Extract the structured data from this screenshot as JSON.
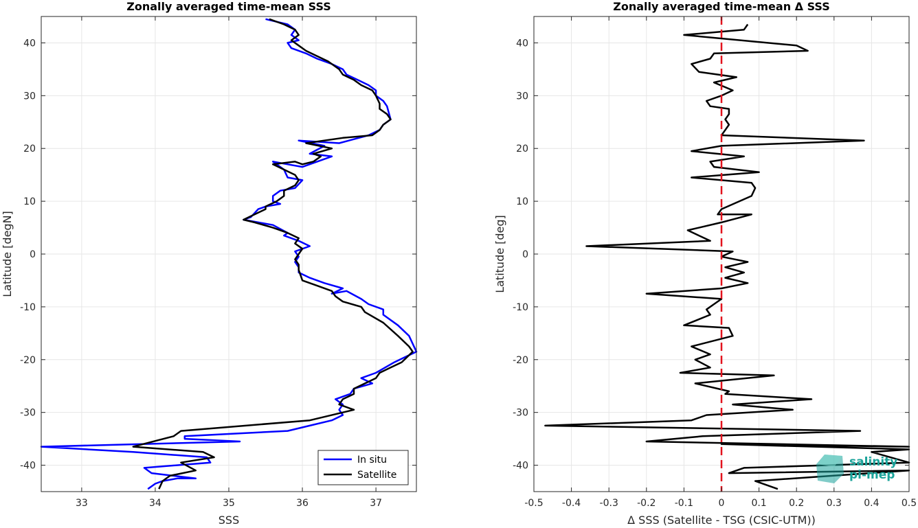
{
  "chart_data": [
    {
      "type": "line",
      "title": "Zonally averaged time-mean SSS",
      "xlabel": "SSS",
      "ylabel": "Latitude [degN]",
      "xlim": [
        32.45,
        37.55
      ],
      "ylim": [
        -45,
        45
      ],
      "xticks": [
        33,
        34,
        35,
        36,
        37
      ],
      "yticks": [
        -40,
        -30,
        -20,
        -10,
        0,
        10,
        20,
        30,
        40
      ],
      "grid": true,
      "legend_position": "bottom-right",
      "series": [
        {
          "name": "In situ",
          "color": "#0000ff",
          "x": [
            35.5,
            35.8,
            35.9,
            35.85,
            35.95,
            35.8,
            35.85,
            36.05,
            36.2,
            36.4,
            36.55,
            36.6,
            36.75,
            36.9,
            37.0,
            37.0,
            37.1,
            37.15,
            37.2,
            37.1,
            37.05,
            36.9,
            36.5,
            35.95,
            36.3,
            36.1,
            36.4,
            36.2,
            36.0,
            35.8,
            35.6,
            35.75,
            35.8,
            36.0,
            35.9,
            35.7,
            35.6,
            35.6,
            35.7,
            35.5,
            35.4,
            35.3,
            35.2,
            35.4,
            35.6,
            35.8,
            35.75,
            35.95,
            36.1,
            35.9,
            35.95,
            35.9,
            35.95,
            35.95,
            36.1,
            36.3,
            36.55,
            36.4,
            36.6,
            36.8,
            36.9,
            37.1,
            37.1,
            37.3,
            37.45,
            37.55,
            37.4,
            37.25,
            37.0,
            36.8,
            36.95,
            36.7,
            36.65,
            36.45,
            36.55,
            36.5,
            36.55,
            36.4,
            36.1,
            35.8,
            34.4,
            34.4,
            35.15,
            32.45,
            33.7,
            34.7,
            34.75,
            33.85,
            33.95,
            34.55,
            34.3,
            34.1,
            34.0,
            33.9
          ],
          "y": [
            44.5,
            43.5,
            42.5,
            41.5,
            40.5,
            40.0,
            39.0,
            38.0,
            37.0,
            36.0,
            35.0,
            34.0,
            33.0,
            32.0,
            31.0,
            30.0,
            29.0,
            28.0,
            25.5,
            24.5,
            23.5,
            22.5,
            21.0,
            21.5,
            20.5,
            19.0,
            18.5,
            17.5,
            16.5,
            17.0,
            17.5,
            16.0,
            14.5,
            14.0,
            12.5,
            12.0,
            11.0,
            10.0,
            9.5,
            9.0,
            8.5,
            7.0,
            6.5,
            6.0,
            5.5,
            4.0,
            3.5,
            2.5,
            1.5,
            0.5,
            -0.5,
            -1.5,
            -2.5,
            -3.5,
            -4.5,
            -5.5,
            -6.5,
            -7.5,
            -7.0,
            -8.5,
            -9.5,
            -10.5,
            -11.5,
            -13.5,
            -15.5,
            -18.5,
            -19.5,
            -20.5,
            -22.5,
            -23.5,
            -24.5,
            -25.5,
            -26.5,
            -27.5,
            -28.5,
            -29.5,
            -30.5,
            -31.5,
            -32.5,
            -33.5,
            -34.5,
            -35.0,
            -35.5,
            -36.5,
            -37.5,
            -38.5,
            -39.5,
            -40.5,
            -41.5,
            -42.5,
            -42.5,
            -43.0,
            -43.5,
            -44.5
          ]
        },
        {
          "name": "Satellite",
          "color": "#000000",
          "x": [
            35.55,
            35.75,
            35.9,
            35.95,
            35.85,
            35.95,
            36.05,
            36.2,
            36.35,
            36.5,
            36.55,
            36.7,
            36.8,
            36.95,
            37.0,
            37.05,
            37.05,
            37.15,
            37.2,
            37.1,
            37.05,
            36.95,
            36.55,
            36.05,
            36.4,
            36.15,
            36.25,
            36.15,
            36.0,
            35.9,
            35.6,
            35.75,
            35.9,
            35.95,
            35.9,
            35.75,
            35.75,
            35.7,
            35.65,
            35.5,
            35.5,
            35.35,
            35.2,
            35.35,
            35.6,
            35.8,
            35.95,
            35.9,
            36.0,
            35.95,
            35.9,
            35.95,
            35.95,
            36.0,
            36.2,
            36.4,
            36.45,
            36.55,
            36.8,
            36.85,
            37.1,
            37.3,
            37.45,
            37.5,
            37.35,
            37.2,
            37.05,
            37.0,
            36.7,
            36.7,
            36.55,
            36.5,
            36.7,
            36.1,
            34.35,
            34.25,
            33.7,
            34.65,
            34.8,
            34.35,
            34.55,
            34.2,
            34.1,
            34.05
          ],
          "y": [
            44.5,
            43.5,
            42.5,
            41.5,
            40.5,
            39.5,
            38.5,
            37.5,
            36.5,
            35.0,
            34.0,
            33.0,
            32.0,
            31.0,
            30.0,
            28.5,
            27.5,
            26.5,
            25.5,
            24.5,
            23.5,
            22.5,
            22.0,
            21.0,
            20.0,
            19.0,
            18.5,
            17.5,
            17.0,
            17.5,
            17.0,
            16.0,
            15.0,
            14.0,
            13.0,
            12.0,
            11.0,
            10.5,
            10.0,
            9.0,
            8.5,
            7.5,
            6.5,
            6.0,
            5.0,
            4.0,
            3.0,
            2.0,
            1.0,
            0.0,
            -1.0,
            -2.0,
            -3.0,
            -5.0,
            -6.0,
            -7.0,
            -8.0,
            -9.0,
            -10.0,
            -11.0,
            -13.0,
            -15.5,
            -17.5,
            -18.5,
            -20.5,
            -21.5,
            -22.5,
            -23.5,
            -25.5,
            -26.5,
            -27.5,
            -28.5,
            -29.5,
            -31.5,
            -33.5,
            -34.5,
            -36.5,
            -37.5,
            -38.5,
            -39.5,
            -41.0,
            -42.0,
            -43.0,
            -44.5
          ]
        }
      ]
    },
    {
      "type": "line",
      "title": "Zonally averaged time-mean Δ SSS",
      "xlabel": "Δ SSS (Satellite - TSG (CSIC-UTM))",
      "ylabel": "Latitude [deg]",
      "xlim": [
        -0.5,
        0.5
      ],
      "ylim": [
        -45,
        45
      ],
      "xticks": [
        -0.5,
        -0.4,
        -0.3,
        -0.2,
        -0.1,
        0,
        0.1,
        0.2,
        0.3,
        0.4,
        0.5
      ],
      "yticks": [
        -40,
        -30,
        -20,
        -10,
        0,
        10,
        20,
        30,
        40
      ],
      "grid": true,
      "reference_line": {
        "x": 0,
        "color": "#e3121d",
        "style": "dashed"
      },
      "series": [
        {
          "name": "",
          "color": "#000000",
          "x": [
            0.07,
            0.06,
            -0.1,
            0.2,
            0.23,
            -0.02,
            -0.03,
            -0.08,
            -0.06,
            0.04,
            -0.02,
            0.03,
            0.0,
            -0.04,
            -0.03,
            0.02,
            0.02,
            0.01,
            0.02,
            0.01,
            0.0,
            0.38,
            0.0,
            -0.08,
            0.06,
            -0.03,
            -0.02,
            0.1,
            -0.08,
            0.08,
            0.09,
            0.08,
            0.0,
            -0.01,
            0.08,
            0.0,
            -0.09,
            -0.06,
            -0.03,
            -0.36,
            0.03,
            0.0,
            0.07,
            0.01,
            0.06,
            0.01,
            0.07,
            0.0,
            -0.2,
            0.0,
            -0.02,
            -0.04,
            -0.03,
            -0.1,
            0.02,
            0.03,
            -0.08,
            -0.03,
            -0.07,
            -0.03,
            -0.11,
            0.14,
            -0.07,
            0.02,
            0.01,
            0.24,
            0.03,
            0.19,
            -0.04,
            -0.08,
            -0.47,
            0.37,
            -0.05,
            -0.2,
            0.5,
            0.0,
            0.5,
            0.4,
            0.5,
            0.06,
            0.02,
            0.5,
            0.09,
            0.15
          ],
          "y": [
            43.5,
            42.5,
            41.5,
            39.5,
            38.5,
            38.0,
            37.0,
            36.0,
            34.5,
            33.5,
            32.5,
            31.0,
            30.0,
            29.0,
            28.0,
            27.5,
            26.5,
            25.5,
            24.5,
            23.5,
            22.5,
            21.5,
            20.5,
            19.5,
            18.5,
            17.5,
            16.5,
            15.5,
            14.5,
            13.5,
            12.5,
            11.0,
            8.5,
            7.5,
            7.5,
            6.0,
            4.5,
            3.5,
            2.5,
            1.5,
            0.5,
            -0.5,
            -1.5,
            -2.5,
            -3.5,
            -4.5,
            -5.5,
            -6.5,
            -7.5,
            -8.5,
            -9.5,
            -10.5,
            -11.5,
            -13.5,
            -14.0,
            -15.5,
            -17.5,
            -19.0,
            -20.0,
            -21.5,
            -22.5,
            -23.0,
            -24.5,
            -26.0,
            -26.5,
            -27.5,
            -28.5,
            -29.5,
            -30.5,
            -31.5,
            -32.5,
            -33.5,
            -34.5,
            -35.5,
            -36.5,
            -36.0,
            -37.0,
            -37.5,
            -39.5,
            -40.5,
            -41.5,
            -41.0,
            -43.0,
            -44.5
          ]
        }
      ]
    }
  ],
  "legend": {
    "items": [
      {
        "label": "In situ",
        "color": "#0000ff"
      },
      {
        "label": "Satellite",
        "color": "#000000"
      }
    ]
  },
  "logo": {
    "line1": "salinity",
    "line2": "pi-mep",
    "color": "#1aa39a"
  }
}
